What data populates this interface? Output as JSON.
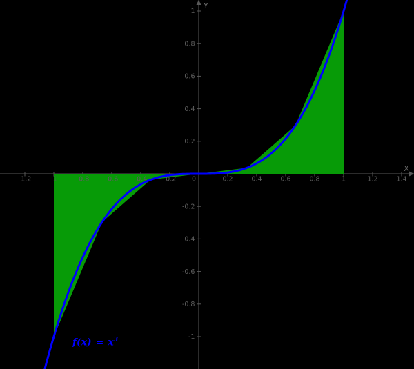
{
  "chart_data": {
    "type": "line",
    "title": "",
    "function": "f(x) = x^3",
    "function_label_parts": {
      "lhs": "f(x)",
      "eq": "=",
      "base": "x",
      "exp": "3"
    },
    "grid": false,
    "legend": "none",
    "x_range": [
      -1.3714,
      1.4857
    ],
    "y_range": [
      -1.1992,
      1.0678
    ],
    "x_axis": {
      "label": "X",
      "ticks": [
        {
          "v": -1.2,
          "label": "-1.2"
        },
        {
          "v": -1.0,
          "label": "-1"
        },
        {
          "v": -0.8,
          "label": "-0.8"
        },
        {
          "v": -0.6,
          "label": "-0.6"
        },
        {
          "v": -0.4,
          "label": "-0.4"
        },
        {
          "v": -0.2,
          "label": "-0.2"
        },
        {
          "v": 0,
          "label": "0"
        },
        {
          "v": 0.2,
          "label": "0.2"
        },
        {
          "v": 0.4,
          "label": "0.4"
        },
        {
          "v": 0.6,
          "label": "0.6"
        },
        {
          "v": 0.8,
          "label": "0.8"
        },
        {
          "v": 1.0,
          "label": "1"
        },
        {
          "v": 1.2,
          "label": "1.2"
        },
        {
          "v": 1.4,
          "label": "1.4"
        }
      ]
    },
    "y_axis": {
      "label": "Y",
      "ticks": [
        {
          "v": 1.0,
          "label": "1"
        },
        {
          "v": 0.8,
          "label": "0.8"
        },
        {
          "v": 0.6,
          "label": "0.6"
        },
        {
          "v": 0.4,
          "label": "0.4"
        },
        {
          "v": 0.2,
          "label": "0.2"
        },
        {
          "v": -0.2,
          "label": "-0.2"
        },
        {
          "v": -0.4,
          "label": "-0.4"
        },
        {
          "v": -0.6,
          "label": "-0.6"
        },
        {
          "v": -0.8,
          "label": "-0.8"
        },
        {
          "v": -1.0,
          "label": "-1"
        }
      ]
    },
    "curve": {
      "name": "f",
      "formula": "x^3",
      "exponent": 3,
      "color": "#0000FF",
      "stroke_width": 3,
      "points": [
        [
          -1.1,
          -1.331
        ],
        [
          -1.0,
          -1.0
        ],
        [
          -0.9,
          -0.729
        ],
        [
          -0.8,
          -0.512
        ],
        [
          -0.7,
          -0.343
        ],
        [
          -0.6,
          -0.216
        ],
        [
          -0.5,
          -0.125
        ],
        [
          -0.4,
          -0.064
        ],
        [
          -0.3,
          -0.027
        ],
        [
          -0.2,
          -0.008
        ],
        [
          -0.1,
          -0.001
        ],
        [
          0,
          0
        ],
        [
          0.1,
          0.001
        ],
        [
          0.2,
          0.008
        ],
        [
          0.3,
          0.027
        ],
        [
          0.4,
          0.064
        ],
        [
          0.5,
          0.125
        ],
        [
          0.6,
          0.216
        ],
        [
          0.7,
          0.343
        ],
        [
          0.8,
          0.512
        ],
        [
          0.9,
          0.729
        ],
        [
          1.0,
          1.0
        ],
        [
          1.1,
          1.331
        ]
      ]
    },
    "trapezoid_sum": {
      "interval": [
        -1,
        1
      ],
      "n": 6,
      "x_nodes": [
        -1,
        -0.6667,
        -0.3333,
        0,
        0.3333,
        0.6667,
        1
      ],
      "y_nodes": [
        -1,
        -0.2963,
        -0.037,
        0,
        0.037,
        0.2963,
        1
      ],
      "fill": "#079B07"
    },
    "colors": {
      "background": "#000000",
      "axis": "#585858",
      "tick_label": "#5F5F5F",
      "axis_name_label": "#6A6A6A",
      "area": "#079B07",
      "curve": "#0000FF",
      "function_label": "#0000FF"
    }
  }
}
